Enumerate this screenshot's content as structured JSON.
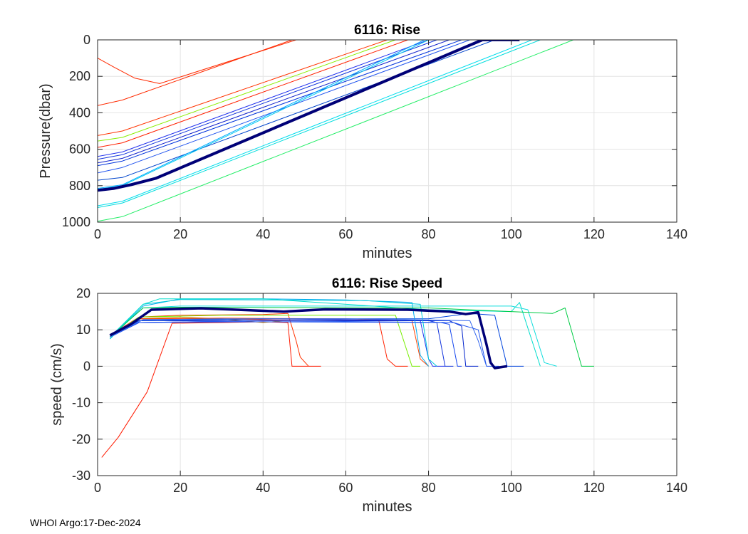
{
  "footer_label": "WHOI Argo:17-Dec-2024",
  "chart_data": [
    {
      "type": "line",
      "title": "6116: Rise",
      "xlabel": "minutes",
      "ylabel": "Pressure(dbar)",
      "xlim": [
        0,
        140
      ],
      "ylim": [
        0,
        1000
      ],
      "y_reversed": true,
      "grid": true,
      "xticks": [
        0,
        20,
        40,
        60,
        80,
        100,
        120,
        140
      ],
      "yticks": [
        0,
        200,
        400,
        600,
        800,
        1000
      ],
      "series": [
        {
          "name": "profile-1",
          "color": "#ff2a00",
          "width": 1,
          "x": [
            0,
            4,
            9,
            15,
            48,
            58
          ],
          "y": [
            100,
            150,
            210,
            240,
            0,
            0
          ]
        },
        {
          "name": "profile-2",
          "color": "#ff2a00",
          "width": 1,
          "x": [
            0,
            6,
            47,
            50
          ],
          "y": [
            360,
            330,
            0,
            0
          ]
        },
        {
          "name": "profile-3",
          "color": "#ff3300",
          "width": 1,
          "x": [
            0,
            6,
            70,
            75
          ],
          "y": [
            525,
            500,
            0,
            0
          ]
        },
        {
          "name": "profile-4",
          "color": "#ff2000",
          "width": 1,
          "x": [
            0,
            6,
            75,
            80
          ],
          "y": [
            590,
            565,
            0,
            0
          ]
        },
        {
          "name": "profile-5",
          "color": "#88ee00",
          "width": 1,
          "x": [
            0,
            6,
            72,
            78
          ],
          "y": [
            555,
            535,
            0,
            0
          ]
        },
        {
          "name": "profile-6",
          "color": "#99ff33",
          "width": 1,
          "x": [
            0,
            6
          ],
          "y": [
            0,
            0
          ]
        },
        {
          "name": "profile-7",
          "color": "#2233ee",
          "width": 1,
          "x": [
            0,
            6,
            80,
            84
          ],
          "y": [
            640,
            615,
            0,
            0
          ]
        },
        {
          "name": "profile-8",
          "color": "#1133dd",
          "width": 1,
          "x": [
            0,
            6,
            82,
            86
          ],
          "y": [
            655,
            630,
            0,
            0
          ]
        },
        {
          "name": "profile-9",
          "color": "#1122cc",
          "width": 1,
          "x": [
            0,
            6,
            85,
            88
          ],
          "y": [
            675,
            650,
            0,
            0
          ]
        },
        {
          "name": "profile-10",
          "color": "#0033dd",
          "width": 1,
          "x": [
            0,
            6,
            88,
            92
          ],
          "y": [
            690,
            665,
            0,
            0
          ]
        },
        {
          "name": "profile-11",
          "color": "#2255ee",
          "width": 1,
          "x": [
            0,
            6,
            90,
            95
          ],
          "y": [
            730,
            700,
            0,
            0
          ]
        },
        {
          "name": "profile-12",
          "color": "#0044cc",
          "width": 1,
          "x": [
            0,
            6,
            96,
            100
          ],
          "y": [
            770,
            755,
            0,
            0
          ]
        },
        {
          "name": "profile-13",
          "color": "#00aaff",
          "width": 1,
          "x": [
            0,
            6,
            79,
            84
          ],
          "y": [
            815,
            795,
            0,
            0
          ]
        },
        {
          "name": "profile-14",
          "color": "#00ccee",
          "width": 1,
          "x": [
            0,
            6,
            80,
            86
          ],
          "y": [
            820,
            800,
            0,
            0
          ]
        },
        {
          "name": "profile-15",
          "color": "#00ddee",
          "width": 1,
          "x": [
            0,
            6,
            105,
            112
          ],
          "y": [
            910,
            885,
            0,
            0
          ]
        },
        {
          "name": "profile-16",
          "color": "#00dddd",
          "width": 1,
          "x": [
            0,
            6,
            107,
            114
          ],
          "y": [
            920,
            895,
            0,
            0
          ]
        },
        {
          "name": "profile-17",
          "color": "#22ee66",
          "width": 1,
          "x": [
            0,
            6,
            115,
            124
          ],
          "y": [
            995,
            970,
            0,
            0
          ]
        },
        {
          "name": "profile-mean",
          "color": "#000077",
          "width": 4,
          "x": [
            0,
            4,
            8,
            14,
            93,
            102
          ],
          "y": [
            825,
            815,
            795,
            760,
            0,
            0
          ]
        }
      ]
    },
    {
      "type": "line",
      "title": "6116: Rise Speed",
      "xlabel": "minutes",
      "ylabel": "speed (cm/s)",
      "xlim": [
        0,
        140
      ],
      "ylim": [
        -30,
        20
      ],
      "grid": true,
      "xticks": [
        0,
        20,
        40,
        60,
        80,
        100,
        120,
        140
      ],
      "yticks": [
        -30,
        -20,
        -10,
        0,
        10,
        20
      ],
      "series": [
        {
          "name": "speed-1",
          "color": "#ff1a00",
          "width": 1,
          "x": [
            1,
            5,
            12,
            18,
            30,
            40,
            46,
            47,
            50,
            54
          ],
          "y": [
            -25,
            -19.5,
            -7,
            11.8,
            12,
            12.2,
            12,
            0,
            0,
            0
          ]
        },
        {
          "name": "speed-2",
          "color": "#ff3300",
          "width": 1,
          "x": [
            3,
            10,
            20,
            40,
            46,
            48,
            49,
            51
          ],
          "y": [
            8.5,
            13.5,
            14,
            14.2,
            14.5,
            7,
            2.5,
            0
          ]
        },
        {
          "name": "speed-3",
          "color": "#cc8800",
          "width": 1,
          "x": [
            3,
            10,
            20,
            30,
            40,
            45,
            47
          ],
          "y": [
            8,
            13,
            13.5,
            13,
            12,
            12.5,
            12.5
          ]
        },
        {
          "name": "speed-4",
          "color": "#ff2200",
          "width": 1,
          "x": [
            3,
            10,
            30,
            50,
            68,
            70,
            72,
            75
          ],
          "y": [
            8,
            13,
            13,
            12.5,
            12.5,
            2,
            0,
            0
          ]
        },
        {
          "name": "speed-5",
          "color": "#ff4400",
          "width": 1,
          "x": [
            3,
            10,
            30,
            60,
            76,
            78,
            80
          ],
          "y": [
            8,
            13,
            13.2,
            13,
            12.5,
            2,
            0
          ]
        },
        {
          "name": "speed-6",
          "color": "#77ee00",
          "width": 1,
          "x": [
            3,
            10,
            30,
            60,
            72,
            74,
            76,
            78
          ],
          "y": [
            8,
            13.5,
            14,
            14,
            14,
            7,
            0,
            0
          ]
        },
        {
          "name": "speed-7",
          "color": "#2233ee",
          "width": 1,
          "x": [
            3,
            10,
            40,
            78,
            80,
            81,
            84
          ],
          "y": [
            8,
            12,
            12.5,
            12.5,
            2,
            0,
            0
          ]
        },
        {
          "name": "speed-8",
          "color": "#1133dd",
          "width": 1,
          "x": [
            3,
            10,
            40,
            80,
            82,
            84,
            86
          ],
          "y": [
            8,
            12.5,
            13,
            12.5,
            12,
            0,
            0
          ]
        },
        {
          "name": "speed-9",
          "color": "#1144ee",
          "width": 1,
          "x": [
            3,
            10,
            40,
            83,
            85,
            87,
            88
          ],
          "y": [
            8,
            12,
            12.2,
            12,
            11.5,
            0,
            0
          ]
        },
        {
          "name": "speed-10",
          "color": "#0022cc",
          "width": 1,
          "x": [
            3,
            10,
            40,
            85,
            88,
            89,
            92
          ],
          "y": [
            8,
            12.5,
            12.5,
            12.5,
            11,
            0,
            0
          ]
        },
        {
          "name": "speed-11",
          "color": "#2255ee",
          "width": 1,
          "x": [
            3,
            10,
            40,
            86,
            92,
            94,
            97
          ],
          "y": [
            8,
            12,
            12.5,
            12,
            10,
            0,
            0
          ]
        },
        {
          "name": "speed-12",
          "color": "#0044dd",
          "width": 1,
          "x": [
            3,
            10,
            40,
            80,
            90,
            96,
            99,
            103
          ],
          "y": [
            8,
            12.5,
            13,
            13,
            14.5,
            14,
            0,
            0
          ]
        },
        {
          "name": "speed-13",
          "color": "#00aaee",
          "width": 1,
          "x": [
            3,
            11,
            20,
            40,
            60,
            76,
            78,
            80
          ],
          "y": [
            7.5,
            16.5,
            18.5,
            18.5,
            18.2,
            17.5,
            3,
            0
          ]
        },
        {
          "name": "speed-14",
          "color": "#00ccdd",
          "width": 1,
          "x": [
            3,
            11,
            20,
            40,
            65,
            78,
            80,
            82
          ],
          "y": [
            8,
            17,
            18.3,
            18.2,
            18,
            17,
            2,
            0
          ]
        },
        {
          "name": "speed-15",
          "color": "#00ddcc",
          "width": 1,
          "x": [
            3,
            11,
            15,
            40,
            80,
            100,
            102,
            105,
            107
          ],
          "y": [
            7.5,
            17,
            18.5,
            18.5,
            15.5,
            15,
            17.5,
            7,
            0
          ]
        },
        {
          "name": "speed-16",
          "color": "#11dddd",
          "width": 1,
          "x": [
            3,
            11,
            20,
            100,
            104,
            108,
            111
          ],
          "y": [
            8,
            16,
            16.5,
            16.5,
            15.5,
            1,
            0
          ]
        },
        {
          "name": "speed-17",
          "color": "#00cc44",
          "width": 1,
          "x": [
            3,
            11,
            20,
            80,
            110,
            113,
            117,
            120
          ],
          "y": [
            8,
            16,
            16.2,
            16,
            14.5,
            16,
            0,
            0
          ]
        },
        {
          "name": "speed-18",
          "color": "#3366ee",
          "width": 1,
          "x": [
            3,
            11,
            30,
            60,
            90,
            92,
            94
          ],
          "y": [
            8,
            12.8,
            13,
            13,
            12.5,
            7,
            0
          ]
        },
        {
          "name": "speed-mean",
          "color": "#000077",
          "width": 3.5,
          "x": [
            3,
            8,
            13,
            25,
            45,
            55,
            75,
            85,
            89,
            92,
            94,
            95,
            96,
            99
          ],
          "y": [
            8.5,
            11.5,
            15.5,
            15.9,
            15,
            15.6,
            15.5,
            15,
            14.3,
            14.8,
            6,
            1,
            -0.5,
            0
          ]
        }
      ]
    }
  ]
}
